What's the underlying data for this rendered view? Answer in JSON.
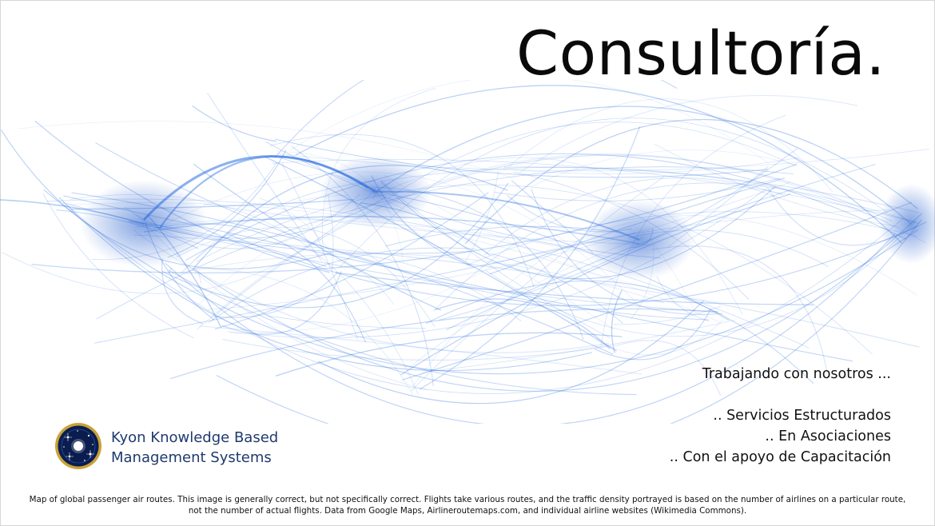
{
  "slide": {
    "title": "Consultoría.",
    "pitch": {
      "intro": "Trabajando con nosotros ...",
      "items": [
        ".. Servicios Estructurados",
        ".. En Asociaciones",
        ".. Con el apoyo de Capacitación"
      ]
    },
    "company": {
      "line1": "Kyon Knowledge Based",
      "line2": "Management Systems",
      "logo_icon": "starry-globe-icon"
    },
    "footnote": {
      "line1": "Map of global passenger air routes. This image is generally correct, but not specifically correct. Flights take various routes, and the traffic density portrayed is based on the number of airlines on a particular route,",
      "line2": "not the number of actual flights. Data from Google Maps, Airlineroutemaps.com, and individual airline websites (Wikimedia Commons)."
    }
  },
  "colors": {
    "route": "#2a6fe0",
    "title_text": "#0a0a0a",
    "company_text": "#1f3a6e",
    "logo_ring": "#c9a23a",
    "logo_fill": "#0b1d4f"
  }
}
